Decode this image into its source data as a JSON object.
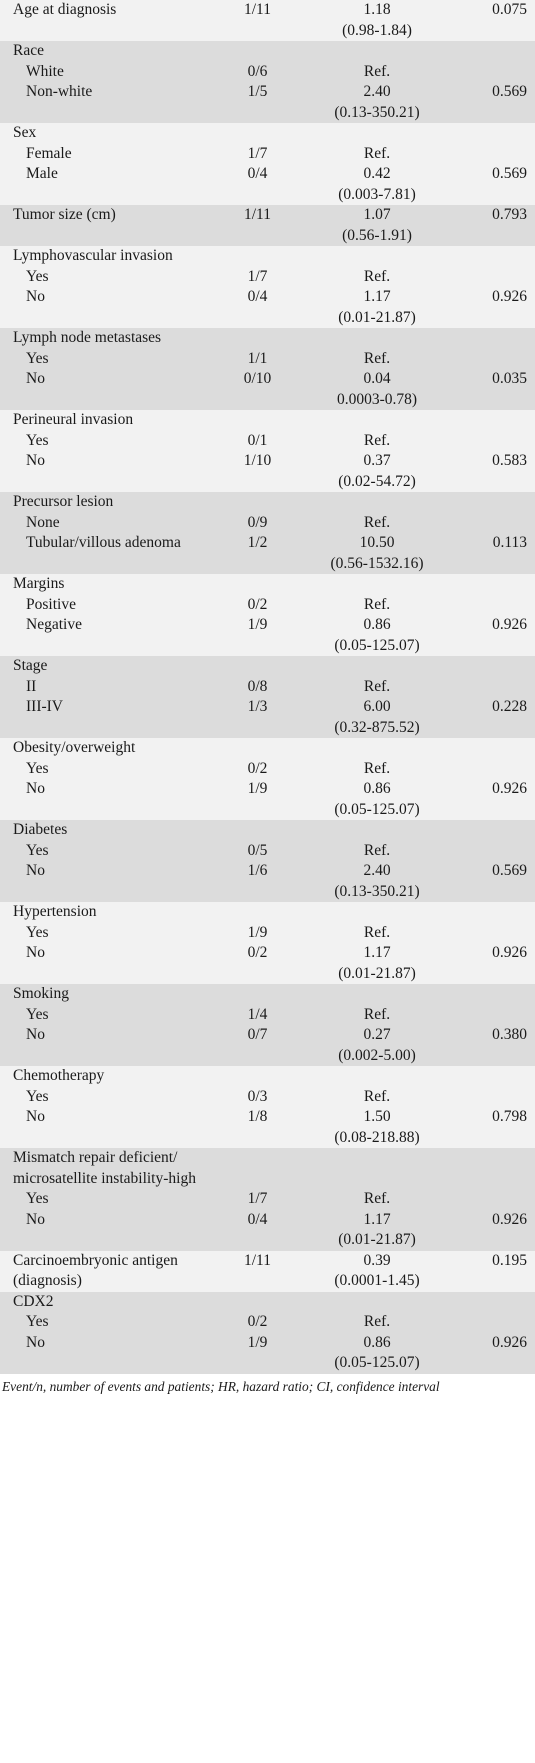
{
  "rows": [
    {
      "label": [
        "Age at diagnosis"
      ],
      "events": [
        "1/11"
      ],
      "hr": [
        "1.18",
        "(0.98-1.84)"
      ],
      "p": [
        "0.075"
      ]
    },
    {
      "label": [
        "Race",
        "White",
        "Non-white"
      ],
      "events": [
        "",
        "0/6",
        "1/5"
      ],
      "hr": [
        "",
        "Ref.",
        "2.40",
        "(0.13-350.21)"
      ],
      "p": [
        "",
        "",
        "0.569"
      ]
    },
    {
      "label": [
        "Sex",
        "Female",
        "Male"
      ],
      "events": [
        "",
        "1/7",
        "0/4"
      ],
      "hr": [
        "",
        "Ref.",
        "0.42",
        "(0.003-7.81)"
      ],
      "p": [
        "",
        "",
        "0.569"
      ]
    },
    {
      "label": [
        "Tumor size (cm)"
      ],
      "events": [
        "1/11"
      ],
      "hr": [
        "1.07",
        "(0.56-1.91)"
      ],
      "p": [
        "0.793"
      ]
    },
    {
      "label": [
        "Lymphovascular invasion",
        "Yes",
        "No"
      ],
      "events": [
        "",
        "1/7",
        "0/4"
      ],
      "hr": [
        "",
        "Ref.",
        "1.17",
        "(0.01-21.87)"
      ],
      "p": [
        "",
        "",
        "0.926"
      ]
    },
    {
      "label": [
        "Lymph node metastases",
        "Yes",
        "No"
      ],
      "events": [
        "",
        "1/1",
        "0/10"
      ],
      "hr": [
        "",
        "Ref.",
        "0.04",
        "0.0003-0.78)"
      ],
      "p": [
        "",
        "",
        "0.035"
      ]
    },
    {
      "label": [
        "Perineural invasion",
        "Yes",
        "No"
      ],
      "events": [
        "",
        "0/1",
        "1/10"
      ],
      "hr": [
        "",
        "Ref.",
        "0.37",
        "(0.02-54.72)"
      ],
      "p": [
        "",
        "",
        "0.583"
      ]
    },
    {
      "label": [
        "Precursor lesion",
        "None",
        "Tubular/villous adenoma"
      ],
      "events": [
        "",
        "0/9",
        "1/2"
      ],
      "hr": [
        "",
        "Ref.",
        "10.50",
        "(0.56-1532.16)"
      ],
      "p": [
        "",
        "",
        "0.113"
      ]
    },
    {
      "label": [
        "Margins",
        "Positive",
        "Negative"
      ],
      "events": [
        "",
        "0/2",
        "1/9"
      ],
      "hr": [
        "",
        "Ref.",
        "0.86",
        "(0.05-125.07)"
      ],
      "p": [
        "",
        "",
        "0.926"
      ]
    },
    {
      "label": [
        "Stage",
        "II",
        "III-IV"
      ],
      "events": [
        "",
        "0/8",
        "1/3"
      ],
      "hr": [
        "",
        "Ref.",
        "6.00",
        "(0.32-875.52)"
      ],
      "p": [
        "",
        "",
        "0.228"
      ]
    },
    {
      "label": [
        "Obesity/overweight",
        "Yes",
        "No"
      ],
      "events": [
        "",
        "0/2",
        "1/9"
      ],
      "hr": [
        "",
        "Ref.",
        "0.86",
        "(0.05-125.07)"
      ],
      "p": [
        "",
        "",
        "0.926"
      ]
    },
    {
      "label": [
        "Diabetes",
        "Yes",
        "No"
      ],
      "events": [
        "",
        "0/5",
        "1/6"
      ],
      "hr": [
        "",
        "Ref.",
        "2.40",
        "(0.13-350.21)"
      ],
      "p": [
        "",
        "",
        "0.569"
      ]
    },
    {
      "label": [
        "Hypertension",
        "Yes",
        "No"
      ],
      "events": [
        "",
        "1/9",
        "0/2"
      ],
      "hr": [
        "",
        "Ref.",
        "1.17",
        "(0.01-21.87)"
      ],
      "p": [
        "",
        "",
        "0.926"
      ]
    },
    {
      "label": [
        "Smoking",
        "Yes",
        "No"
      ],
      "events": [
        "",
        "1/4",
        "0/7"
      ],
      "hr": [
        "",
        "Ref.",
        "0.27",
        "(0.002-5.00)"
      ],
      "p": [
        "",
        "",
        "0.380"
      ]
    },
    {
      "label": [
        "Chemotherapy",
        "Yes",
        "No"
      ],
      "events": [
        "",
        "0/3",
        "1/8"
      ],
      "hr": [
        "",
        "Ref.",
        "1.50",
        "(0.08-218.88)"
      ],
      "p": [
        "",
        "",
        "0.798"
      ]
    },
    {
      "label": [
        "Mismatch repair deficient/",
        "microsatellite instability-high",
        "Yes",
        "No"
      ],
      "events": [
        "",
        "",
        "1/7",
        "0/4"
      ],
      "hr": [
        "",
        "",
        "Ref.",
        "1.17",
        "(0.01-21.87)"
      ],
      "p": [
        "",
        "",
        "",
        "0.926"
      ]
    },
    {
      "label": [
        "Carcinoembryonic antigen",
        "(diagnosis)"
      ],
      "events": [
        "1/11"
      ],
      "hr": [
        "0.39",
        "(0.0001-1.45)"
      ],
      "p": [
        "0.195"
      ]
    },
    {
      "label": [
        "CDX2",
        "Yes",
        "No"
      ],
      "events": [
        "",
        "0/2",
        "1/9"
      ],
      "hr": [
        "",
        "Ref.",
        "0.86",
        "(0.05-125.07)"
      ],
      "p": [
        "",
        "",
        "0.926"
      ]
    }
  ],
  "footnote": "Event/n, number of events and patients; HR, hazard ratio; CI, confidence interval",
  "colors": {
    "shaded_row": "#dcdcdc",
    "plain_row": "#f2f2f2",
    "text": "#1a1a1a"
  }
}
